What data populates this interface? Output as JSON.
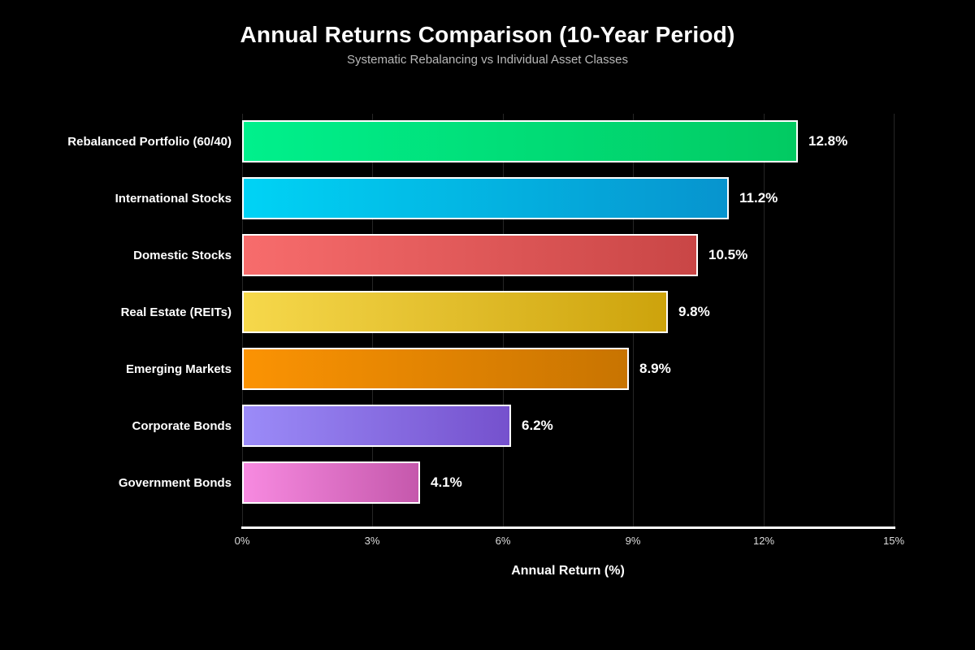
{
  "chart_data": {
    "type": "bar",
    "orientation": "horizontal",
    "title": "Annual Returns Comparison (10-Year Period)",
    "subtitle": "Systematic Rebalancing vs Individual Asset Classes",
    "xlabel": "Annual Return (%)",
    "categories": [
      "Rebalanced Portfolio (60/40)",
      "International Stocks",
      "Domestic Stocks",
      "Real Estate (REITs)",
      "Emerging Markets",
      "Corporate Bonds",
      "Government Bonds"
    ],
    "values": [
      12.8,
      11.2,
      10.5,
      9.8,
      8.9,
      6.2,
      4.1
    ],
    "value_labels": [
      "12.8%",
      "11.2%",
      "10.5%",
      "9.8%",
      "8.9%",
      "6.2%",
      "4.1%"
    ],
    "xlim": [
      0,
      15
    ],
    "xticks": [
      0,
      3,
      6,
      9,
      12,
      15
    ],
    "xtick_labels": [
      "0%",
      "3%",
      "6%",
      "9%",
      "12%",
      "15%"
    ],
    "grid": "vertical",
    "legend": false,
    "bar_gradients": [
      {
        "from": "#00f08c",
        "to": "#02ca62"
      },
      {
        "from": "#00d3f5",
        "to": "#0794ce"
      },
      {
        "from": "#f76c6c",
        "to": "#c94646"
      },
      {
        "from": "#f6d84b",
        "to": "#cda30c"
      },
      {
        "from": "#fb9303",
        "to": "#c87401"
      },
      {
        "from": "#9b8bf8",
        "to": "#7551cd"
      },
      {
        "from": "#f78ae0",
        "to": "#c558ac"
      }
    ],
    "colors": {
      "background": "#000000",
      "bar_border": "#ffffff",
      "grid": "#262626",
      "axis_line": "#ffffff",
      "title_text": "#ffffff",
      "subtitle_text": "#b8b8b8",
      "tick_text": "#dcdcdc",
      "label_text": "#ffffff"
    }
  }
}
